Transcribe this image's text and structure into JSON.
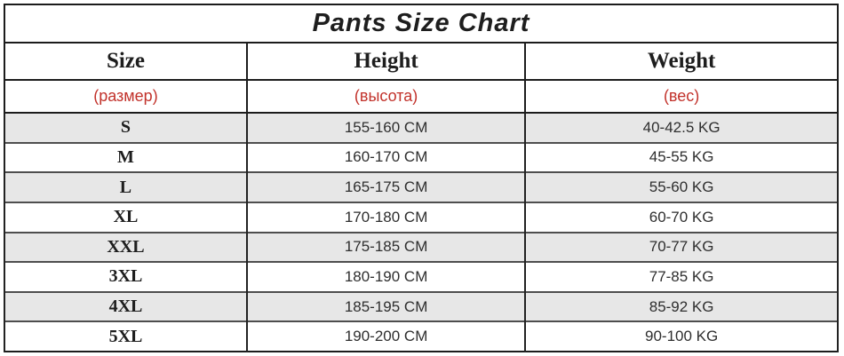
{
  "chart_data": {
    "type": "table",
    "title": "Pants Size Chart",
    "columns": [
      {
        "label": "Size",
        "sublabel": "(размер)"
      },
      {
        "label": "Height",
        "sublabel": "(высота)"
      },
      {
        "label": "Weight",
        "sublabel": "(вес)"
      }
    ],
    "rows": [
      {
        "size": "S",
        "height": "155-160 CM",
        "weight": "40-42.5 KG"
      },
      {
        "size": "M",
        "height": "160-170 CM",
        "weight": "45-55 KG"
      },
      {
        "size": "L",
        "height": "165-175 CM",
        "weight": "55-60 KG"
      },
      {
        "size": "XL",
        "height": "170-180 CM",
        "weight": "60-70 KG"
      },
      {
        "size": "XXL",
        "height": "175-185 CM",
        "weight": "70-77 KG"
      },
      {
        "size": "3XL",
        "height": "180-190 CM",
        "weight": "77-85 KG"
      },
      {
        "size": "4XL",
        "height": "185-195 CM",
        "weight": "85-92 KG"
      },
      {
        "size": "5XL",
        "height": "190-200 CM",
        "weight": "90-100 KG"
      }
    ]
  },
  "colors": {
    "subheader_red": "#c2322b",
    "stripe_gray": "#e7e7e7",
    "border_dark": "#1c1c1c",
    "row_divider": "#4e4e4e",
    "text_dark": "#1e1e1e",
    "value_text": "#2e2e2e"
  }
}
